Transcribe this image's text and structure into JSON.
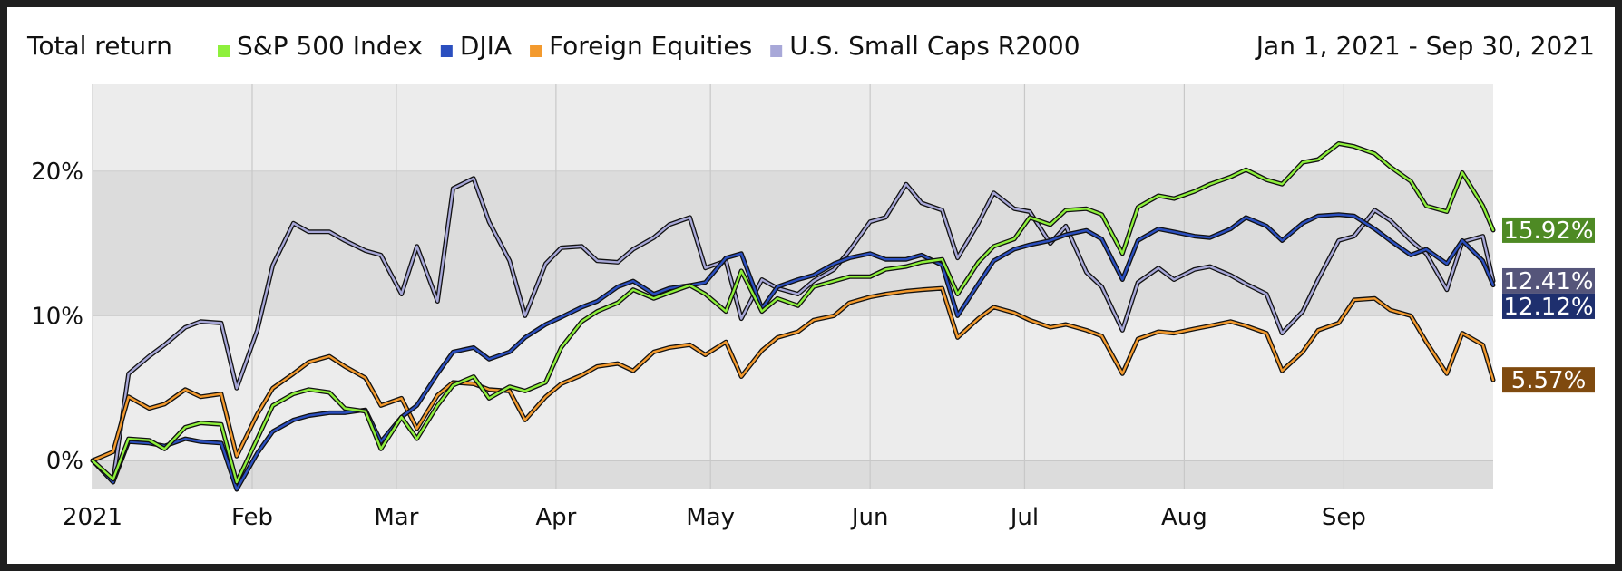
{
  "chart_data": {
    "type": "line",
    "title": "Total return",
    "date_range": "Jan 1, 2021 - Sep 30, 2021",
    "xlabel": "",
    "ylabel": "",
    "x_range": [
      "2021-01-01",
      "2021-09-30"
    ],
    "ylim": [
      -2,
      26
    ],
    "y_ticks": [
      {
        "value": 0,
        "label": "0%"
      },
      {
        "value": 10,
        "label": "10%"
      },
      {
        "value": 20,
        "label": "20%"
      }
    ],
    "x_ticks": [
      {
        "date": "2021-01-01",
        "label": "2021"
      },
      {
        "date": "2021-02-01",
        "label": "Feb"
      },
      {
        "date": "2021-03-01",
        "label": "Mar"
      },
      {
        "date": "2021-04-01",
        "label": "Apr"
      },
      {
        "date": "2021-05-01",
        "label": "May"
      },
      {
        "date": "2021-06-01",
        "label": "Jun"
      },
      {
        "date": "2021-07-01",
        "label": "Jul"
      },
      {
        "date": "2021-08-01",
        "label": "Aug"
      },
      {
        "date": "2021-09-01",
        "label": "Sep"
      }
    ],
    "grid": true,
    "legend_position": "top",
    "series": [
      {
        "name": "S&P 500 Index",
        "color": "#8ef03c",
        "end_label": "15.92%",
        "end_label_color": "#4e8a24",
        "x": [
          "2021-01-01",
          "2021-01-05",
          "2021-01-08",
          "2021-01-12",
          "2021-01-15",
          "2021-01-19",
          "2021-01-22",
          "2021-01-26",
          "2021-01-29",
          "2021-02-02",
          "2021-02-05",
          "2021-02-09",
          "2021-02-12",
          "2021-02-16",
          "2021-02-19",
          "2021-02-23",
          "2021-02-26",
          "2021-03-02",
          "2021-03-05",
          "2021-03-09",
          "2021-03-12",
          "2021-03-16",
          "2021-03-19",
          "2021-03-23",
          "2021-03-26",
          "2021-03-30",
          "2021-04-02",
          "2021-04-06",
          "2021-04-09",
          "2021-04-13",
          "2021-04-16",
          "2021-04-20",
          "2021-04-23",
          "2021-04-27",
          "2021-04-30",
          "2021-05-04",
          "2021-05-07",
          "2021-05-11",
          "2021-05-14",
          "2021-05-18",
          "2021-05-21",
          "2021-05-25",
          "2021-05-28",
          "2021-06-01",
          "2021-06-04",
          "2021-06-08",
          "2021-06-11",
          "2021-06-15",
          "2021-06-18",
          "2021-06-22",
          "2021-06-25",
          "2021-06-29",
          "2021-07-02",
          "2021-07-06",
          "2021-07-09",
          "2021-07-13",
          "2021-07-16",
          "2021-07-20",
          "2021-07-23",
          "2021-07-27",
          "2021-07-30",
          "2021-08-03",
          "2021-08-06",
          "2021-08-10",
          "2021-08-13",
          "2021-08-17",
          "2021-08-20",
          "2021-08-24",
          "2021-08-27",
          "2021-08-31",
          "2021-09-03",
          "2021-09-07",
          "2021-09-10",
          "2021-09-14",
          "2021-09-17",
          "2021-09-21",
          "2021-09-24",
          "2021-09-28",
          "2021-09-30"
        ],
        "values": [
          0,
          -1.3,
          1.5,
          1.4,
          0.8,
          2.3,
          2.6,
          2.5,
          -1.5,
          1.5,
          3.8,
          4.6,
          4.9,
          4.7,
          3.6,
          3.4,
          0.8,
          3.0,
          1.5,
          3.8,
          5.2,
          5.8,
          4.3,
          5.1,
          4.8,
          5.4,
          7.8,
          9.6,
          10.3,
          10.9,
          11.8,
          11.2,
          11.6,
          12.1,
          11.5,
          10.3,
          13.1,
          10.3,
          11.2,
          10.7,
          12.0,
          12.4,
          12.7,
          12.7,
          13.2,
          13.4,
          13.7,
          13.9,
          11.5,
          13.7,
          14.8,
          15.3,
          16.8,
          16.3,
          17.3,
          17.4,
          17.0,
          14.3,
          17.5,
          18.3,
          18.1,
          18.6,
          19.1,
          19.6,
          20.1,
          19.4,
          19.1,
          20.6,
          20.8,
          21.9,
          21.7,
          21.2,
          20.3,
          19.3,
          17.6,
          17.2,
          19.9,
          17.6,
          15.92
        ]
      },
      {
        "name": "DJIA",
        "color": "#2b4fbf",
        "end_label": "12.12%",
        "end_label_color": "#1e2f6e",
        "x": [
          "2021-01-01",
          "2021-01-05",
          "2021-01-08",
          "2021-01-12",
          "2021-01-15",
          "2021-01-19",
          "2021-01-22",
          "2021-01-26",
          "2021-01-29",
          "2021-02-02",
          "2021-02-05",
          "2021-02-09",
          "2021-02-12",
          "2021-02-16",
          "2021-02-19",
          "2021-02-23",
          "2021-02-26",
          "2021-03-02",
          "2021-03-05",
          "2021-03-09",
          "2021-03-12",
          "2021-03-16",
          "2021-03-19",
          "2021-03-23",
          "2021-03-26",
          "2021-03-30",
          "2021-04-02",
          "2021-04-06",
          "2021-04-09",
          "2021-04-13",
          "2021-04-16",
          "2021-04-20",
          "2021-04-23",
          "2021-04-27",
          "2021-04-30",
          "2021-05-04",
          "2021-05-07",
          "2021-05-11",
          "2021-05-14",
          "2021-05-18",
          "2021-05-21",
          "2021-05-25",
          "2021-05-28",
          "2021-06-01",
          "2021-06-04",
          "2021-06-08",
          "2021-06-11",
          "2021-06-15",
          "2021-06-18",
          "2021-06-22",
          "2021-06-25",
          "2021-06-29",
          "2021-07-02",
          "2021-07-06",
          "2021-07-09",
          "2021-07-13",
          "2021-07-16",
          "2021-07-20",
          "2021-07-23",
          "2021-07-27",
          "2021-07-30",
          "2021-08-03",
          "2021-08-06",
          "2021-08-10",
          "2021-08-13",
          "2021-08-17",
          "2021-08-20",
          "2021-08-24",
          "2021-08-27",
          "2021-08-31",
          "2021-09-03",
          "2021-09-07",
          "2021-09-10",
          "2021-09-14",
          "2021-09-17",
          "2021-09-21",
          "2021-09-24",
          "2021-09-28",
          "2021-09-30"
        ],
        "values": [
          0,
          -1.5,
          1.3,
          1.2,
          1.0,
          1.5,
          1.3,
          1.2,
          -2.0,
          0.5,
          2.0,
          2.8,
          3.1,
          3.3,
          3.3,
          3.5,
          1.3,
          3.0,
          3.8,
          6.0,
          7.5,
          7.8,
          7.0,
          7.5,
          8.5,
          9.4,
          9.9,
          10.6,
          11.0,
          12.0,
          12.4,
          11.5,
          11.9,
          12.1,
          12.3,
          14.0,
          14.3,
          10.5,
          12.0,
          12.5,
          12.8,
          13.6,
          14.0,
          14.3,
          13.9,
          13.9,
          14.2,
          13.5,
          10.0,
          12.2,
          13.8,
          14.6,
          14.9,
          15.2,
          15.6,
          15.9,
          15.3,
          12.5,
          15.2,
          16.0,
          15.8,
          15.5,
          15.4,
          16.0,
          16.8,
          16.2,
          15.2,
          16.4,
          16.9,
          17.0,
          16.9,
          16.0,
          15.2,
          14.2,
          14.6,
          13.6,
          15.2,
          13.8,
          12.12
        ]
      },
      {
        "name": "Foreign Equities",
        "color": "#f39a2e",
        "end_label": "5.57%",
        "end_label_color": "#7f4a0f",
        "x": [
          "2021-01-01",
          "2021-01-05",
          "2021-01-08",
          "2021-01-12",
          "2021-01-15",
          "2021-01-19",
          "2021-01-22",
          "2021-01-26",
          "2021-01-29",
          "2021-02-02",
          "2021-02-05",
          "2021-02-09",
          "2021-02-12",
          "2021-02-16",
          "2021-02-19",
          "2021-02-23",
          "2021-02-26",
          "2021-03-02",
          "2021-03-05",
          "2021-03-09",
          "2021-03-12",
          "2021-03-16",
          "2021-03-19",
          "2021-03-23",
          "2021-03-26",
          "2021-03-30",
          "2021-04-02",
          "2021-04-06",
          "2021-04-09",
          "2021-04-13",
          "2021-04-16",
          "2021-04-20",
          "2021-04-23",
          "2021-04-27",
          "2021-04-30",
          "2021-05-04",
          "2021-05-07",
          "2021-05-11",
          "2021-05-14",
          "2021-05-18",
          "2021-05-21",
          "2021-05-25",
          "2021-05-28",
          "2021-06-01",
          "2021-06-04",
          "2021-06-08",
          "2021-06-11",
          "2021-06-15",
          "2021-06-18",
          "2021-06-22",
          "2021-06-25",
          "2021-06-29",
          "2021-07-02",
          "2021-07-06",
          "2021-07-09",
          "2021-07-13",
          "2021-07-16",
          "2021-07-20",
          "2021-07-23",
          "2021-07-27",
          "2021-07-30",
          "2021-08-03",
          "2021-08-06",
          "2021-08-10",
          "2021-08-13",
          "2021-08-17",
          "2021-08-20",
          "2021-08-24",
          "2021-08-27",
          "2021-08-31",
          "2021-09-03",
          "2021-09-07",
          "2021-09-10",
          "2021-09-14",
          "2021-09-17",
          "2021-09-21",
          "2021-09-24",
          "2021-09-28",
          "2021-09-30"
        ],
        "values": [
          0,
          0.6,
          4.4,
          3.6,
          3.9,
          4.9,
          4.4,
          4.6,
          0.3,
          3.2,
          5.0,
          6.0,
          6.8,
          7.2,
          6.5,
          5.7,
          3.8,
          4.3,
          2.2,
          4.5,
          5.4,
          5.3,
          4.9,
          4.8,
          2.8,
          4.4,
          5.3,
          5.9,
          6.5,
          6.7,
          6.2,
          7.5,
          7.8,
          8.0,
          7.3,
          8.2,
          5.8,
          7.6,
          8.5,
          8.9,
          9.7,
          10.0,
          10.9,
          11.3,
          11.5,
          11.7,
          11.8,
          11.9,
          8.5,
          9.8,
          10.6,
          10.2,
          9.7,
          9.2,
          9.4,
          9.0,
          8.6,
          6.0,
          8.4,
          8.9,
          8.8,
          9.1,
          9.3,
          9.6,
          9.3,
          8.8,
          6.2,
          7.5,
          9.0,
          9.5,
          11.1,
          11.2,
          10.4,
          10.0,
          8.2,
          6.0,
          8.8,
          8.0,
          5.57
        ]
      },
      {
        "name": "U.S. Small Caps R2000",
        "color": "#a8a8d8",
        "end_label": "12.41%",
        "end_label_color": "#55557a",
        "x": [
          "2021-01-01",
          "2021-01-05",
          "2021-01-08",
          "2021-01-12",
          "2021-01-15",
          "2021-01-19",
          "2021-01-22",
          "2021-01-26",
          "2021-01-29",
          "2021-02-02",
          "2021-02-05",
          "2021-02-09",
          "2021-02-12",
          "2021-02-16",
          "2021-02-19",
          "2021-02-23",
          "2021-02-26",
          "2021-03-02",
          "2021-03-05",
          "2021-03-09",
          "2021-03-12",
          "2021-03-16",
          "2021-03-19",
          "2021-03-23",
          "2021-03-26",
          "2021-03-30",
          "2021-04-02",
          "2021-04-06",
          "2021-04-09",
          "2021-04-13",
          "2021-04-16",
          "2021-04-20",
          "2021-04-23",
          "2021-04-27",
          "2021-04-30",
          "2021-05-04",
          "2021-05-07",
          "2021-05-11",
          "2021-05-14",
          "2021-05-18",
          "2021-05-21",
          "2021-05-25",
          "2021-05-28",
          "2021-06-01",
          "2021-06-04",
          "2021-06-08",
          "2021-06-11",
          "2021-06-15",
          "2021-06-18",
          "2021-06-22",
          "2021-06-25",
          "2021-06-29",
          "2021-07-02",
          "2021-07-06",
          "2021-07-09",
          "2021-07-13",
          "2021-07-16",
          "2021-07-20",
          "2021-07-23",
          "2021-07-27",
          "2021-07-30",
          "2021-08-03",
          "2021-08-06",
          "2021-08-10",
          "2021-08-13",
          "2021-08-17",
          "2021-08-20",
          "2021-08-24",
          "2021-08-27",
          "2021-08-31",
          "2021-09-03",
          "2021-09-07",
          "2021-09-10",
          "2021-09-14",
          "2021-09-17",
          "2021-09-21",
          "2021-09-24",
          "2021-09-28",
          "2021-09-30"
        ],
        "values": [
          0,
          -1.4,
          6.0,
          7.2,
          8.0,
          9.2,
          9.6,
          9.5,
          5.0,
          9.0,
          13.5,
          16.4,
          15.8,
          15.8,
          15.2,
          14.5,
          14.2,
          11.5,
          14.8,
          11.0,
          18.8,
          19.5,
          16.5,
          13.8,
          10.0,
          13.6,
          14.7,
          14.8,
          13.8,
          13.7,
          14.6,
          15.4,
          16.3,
          16.8,
          13.3,
          13.8,
          9.8,
          12.5,
          11.9,
          11.5,
          12.4,
          13.2,
          14.5,
          16.5,
          16.8,
          19.1,
          17.8,
          17.3,
          14.0,
          16.4,
          18.5,
          17.4,
          17.2,
          15.0,
          16.2,
          13.0,
          12.0,
          9.0,
          12.3,
          13.3,
          12.5,
          13.2,
          13.4,
          12.8,
          12.2,
          11.5,
          8.8,
          10.3,
          12.5,
          15.2,
          15.5,
          17.3,
          16.6,
          15.2,
          14.3,
          11.8,
          15.1,
          15.5,
          12.41
        ]
      }
    ]
  }
}
